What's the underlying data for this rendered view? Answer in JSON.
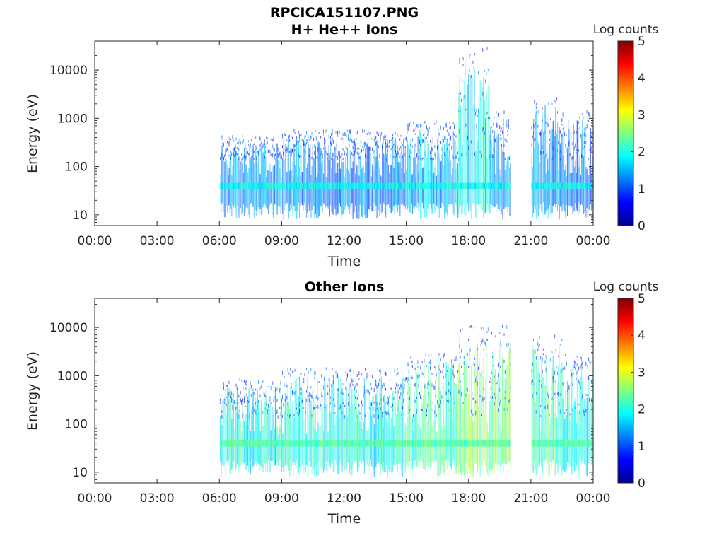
{
  "figure": {
    "main_title": "RPCICA151107.PNG"
  },
  "chart_data": [
    {
      "type": "heatmap",
      "title": "H+ He++ Ions",
      "xlabel": "Time",
      "ylabel": "Energy (eV)",
      "x_ticks": [
        "00:00",
        "03:00",
        "06:00",
        "09:00",
        "12:00",
        "15:00",
        "18:00",
        "21:00",
        "00:00"
      ],
      "x_range_hours": [
        0,
        24
      ],
      "y_scale": "log",
      "y_ticks": [
        10,
        100,
        1000,
        10000
      ],
      "y_tick_labels": [
        "10",
        "100",
        "1000",
        "10000"
      ],
      "y_range": [
        6,
        40000
      ],
      "colorbar": {
        "label": "Log counts",
        "min": 0,
        "max": 5,
        "ticks": [
          "0",
          "1",
          "2",
          "3",
          "4",
          "5"
        ],
        "colormap": "jet"
      },
      "data_gaps_hours": [
        [
          0,
          6
        ],
        [
          20.0,
          21.0
        ]
      ],
      "activity_profile": [
        {
          "from": 6.0,
          "to": 9.0,
          "peak_energy_eV": 300,
          "level": 1.4
        },
        {
          "from": 9.0,
          "to": 15.0,
          "peak_energy_eV": 400,
          "level": 1.3
        },
        {
          "from": 15.0,
          "to": 17.5,
          "peak_energy_eV": 600,
          "level": 1.5
        },
        {
          "from": 17.5,
          "to": 19.0,
          "peak_energy_eV": 20000,
          "level": 1.9
        },
        {
          "from": 19.0,
          "to": 20.0,
          "peak_energy_eV": 1000,
          "level": 1.5
        },
        {
          "from": 21.0,
          "to": 22.5,
          "peak_energy_eV": 2000,
          "level": 1.3
        },
        {
          "from": 22.5,
          "to": 24.0,
          "peak_energy_eV": 1000,
          "level": 1.2
        }
      ],
      "band_energy_eV": 40,
      "band_level": 1.9
    },
    {
      "type": "heatmap",
      "title": "Other Ions",
      "xlabel": "Time",
      "ylabel": "Energy (eV)",
      "x_ticks": [
        "00:00",
        "03:00",
        "06:00",
        "09:00",
        "12:00",
        "15:00",
        "18:00",
        "21:00",
        "00:00"
      ],
      "x_range_hours": [
        0,
        24
      ],
      "y_scale": "log",
      "y_ticks": [
        10,
        100,
        1000,
        10000
      ],
      "y_tick_labels": [
        "10",
        "100",
        "1000",
        "10000"
      ],
      "y_range": [
        6,
        40000
      ],
      "colorbar": {
        "label": "Log counts",
        "min": 0,
        "max": 5,
        "ticks": [
          "0",
          "1",
          "2",
          "3",
          "4",
          "5"
        ],
        "colormap": "jet"
      },
      "data_gaps_hours": [
        [
          0,
          6
        ],
        [
          20.0,
          21.0
        ]
      ],
      "activity_profile": [
        {
          "from": 6.0,
          "to": 9.0,
          "peak_energy_eV": 600,
          "level": 2.0
        },
        {
          "from": 9.0,
          "to": 15.0,
          "peak_energy_eV": 1000,
          "level": 2.0
        },
        {
          "from": 15.0,
          "to": 17.5,
          "peak_energy_eV": 2000,
          "level": 2.2
        },
        {
          "from": 17.5,
          "to": 20.0,
          "peak_energy_eV": 8000,
          "level": 2.5
        },
        {
          "from": 21.0,
          "to": 22.5,
          "peak_energy_eV": 5000,
          "level": 2.2
        },
        {
          "from": 22.5,
          "to": 24.0,
          "peak_energy_eV": 2000,
          "level": 2.0
        }
      ],
      "band_energy_eV": 40,
      "band_level": 2.3
    }
  ]
}
